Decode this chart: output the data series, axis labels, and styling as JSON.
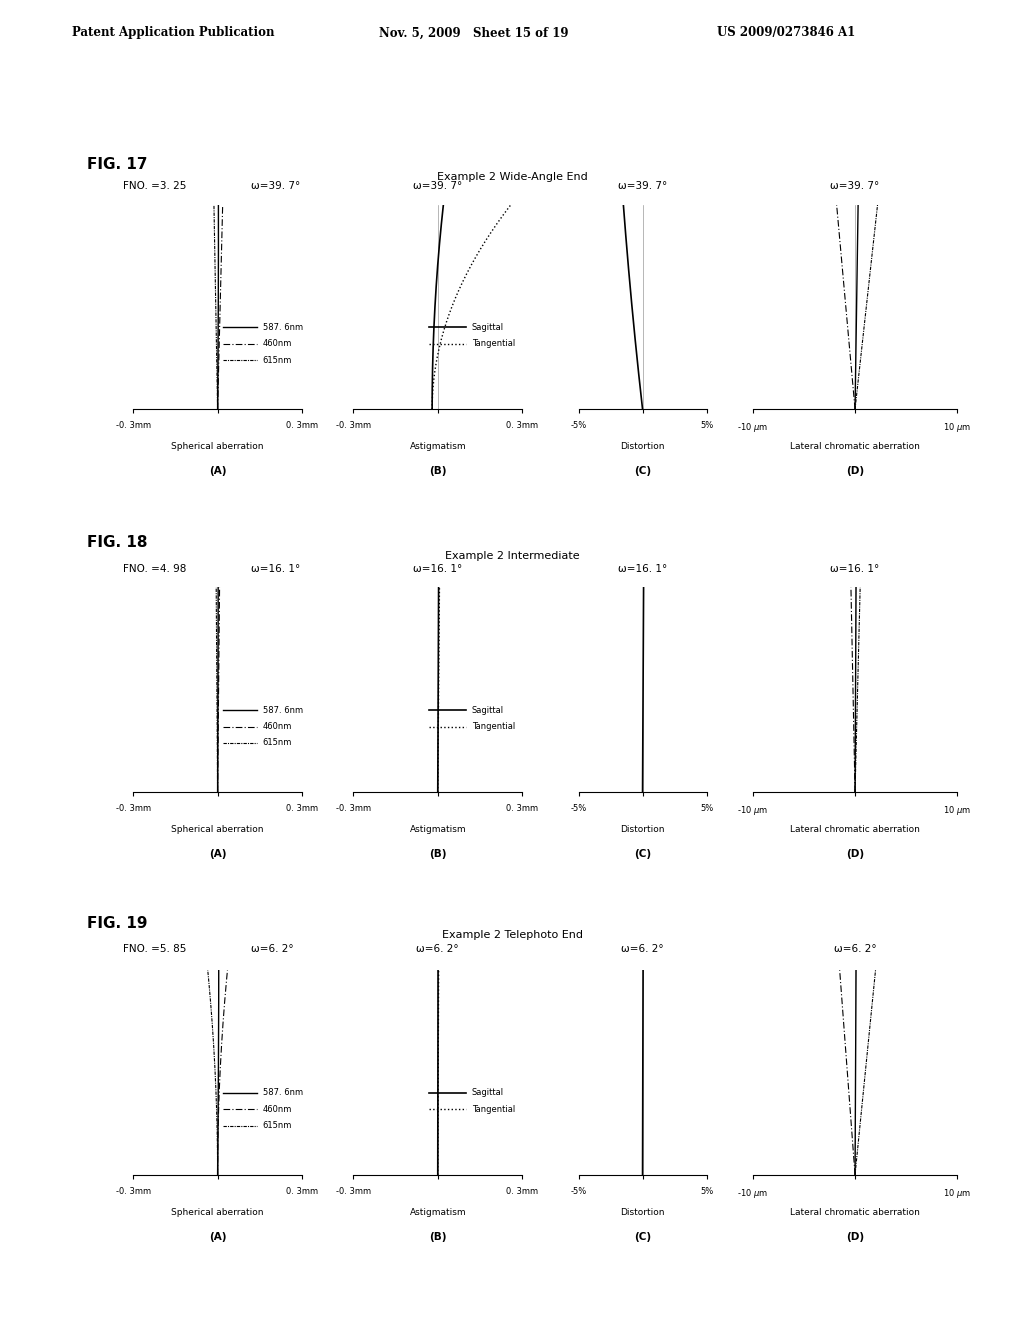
{
  "header_left": "Patent Application Publication",
  "header_mid": "Nov. 5, 2009   Sheet 15 of 19",
  "header_right": "US 2009/0273846 A1",
  "figures": [
    {
      "fig_label": "FIG. 17",
      "title": "Example 2 Wide-Angle End",
      "fno": "FNO. =3. 25",
      "omega_A": "ω=39. 7°",
      "omega_B": "ω=39. 7°",
      "omega_C": "ω=39. 7°",
      "omega_D": "ω=39. 7°"
    },
    {
      "fig_label": "FIG. 18",
      "title": "Example 2 Intermediate",
      "fno": "FNO. =4. 98",
      "omega_A": "ω=16. 1°",
      "omega_B": "ω=16. 1°",
      "omega_C": "ω=16. 1°",
      "omega_D": "ω=16. 1°"
    },
    {
      "fig_label": "FIG. 19",
      "title": "Example 2 Telephoto End",
      "fno": "FNO. =5. 85",
      "omega_A": "ω=6. 2°",
      "omega_B": "ω=6. 2°",
      "omega_C": "ω=6. 2°",
      "omega_D": "ω=6. 2°"
    }
  ],
  "bg_color": "#ffffff"
}
